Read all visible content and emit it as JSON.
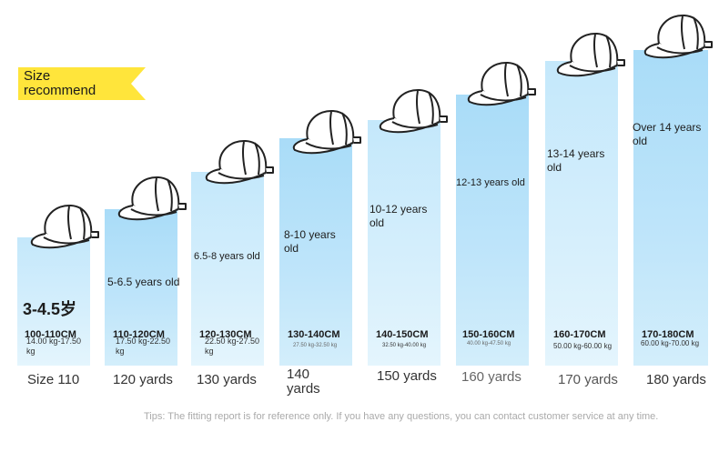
{
  "badge": {
    "line1": "Size",
    "line2": "recommend",
    "color": "#ffe53b"
  },
  "columns": [
    {
      "age": "3-4.5岁",
      "cm": "100-110CM",
      "kg": "14.00 kg-17.50 kg",
      "size": "Size 110"
    },
    {
      "age": "5-6.5 years old",
      "cm": "110-120CM",
      "kg": "17.50 kg-22.50 kg",
      "size": "120 yards"
    },
    {
      "age": "6.5-8 years old",
      "cm": "120-130CM",
      "kg": "22.50 kg-27.50 kg",
      "size": "130 yards"
    },
    {
      "age": "8-10 years old",
      "cm": "130-140CM",
      "kg": "27.50 kg-32.50 kg",
      "size": "140 yards"
    },
    {
      "age": "10-12 years old",
      "cm": "140-150CM",
      "kg": "32.50 kg-40.00 kg",
      "size": "150 yards"
    },
    {
      "age": "12-13 years old",
      "cm": "150-160CM",
      "kg": "40.00 kg-47.50 kg",
      "size": "160 yards"
    },
    {
      "age": "13-14 years old",
      "cm": "160-170CM",
      "kg": "50.00 kg-60.00 kg",
      "size": "170 yards"
    },
    {
      "age": "Over 14 years old",
      "cm": "170-180CM",
      "kg": "60.00 kg-70.00 kg",
      "size": "180 yards"
    }
  ],
  "tip": "Tips: The fitting report is for reference only. If you have any questions, you can contact customer service at any time.",
  "colors": {
    "column_light": "#d6effc",
    "column_dark": "#bfe5fa"
  },
  "icons": [
    "cap-icon"
  ]
}
